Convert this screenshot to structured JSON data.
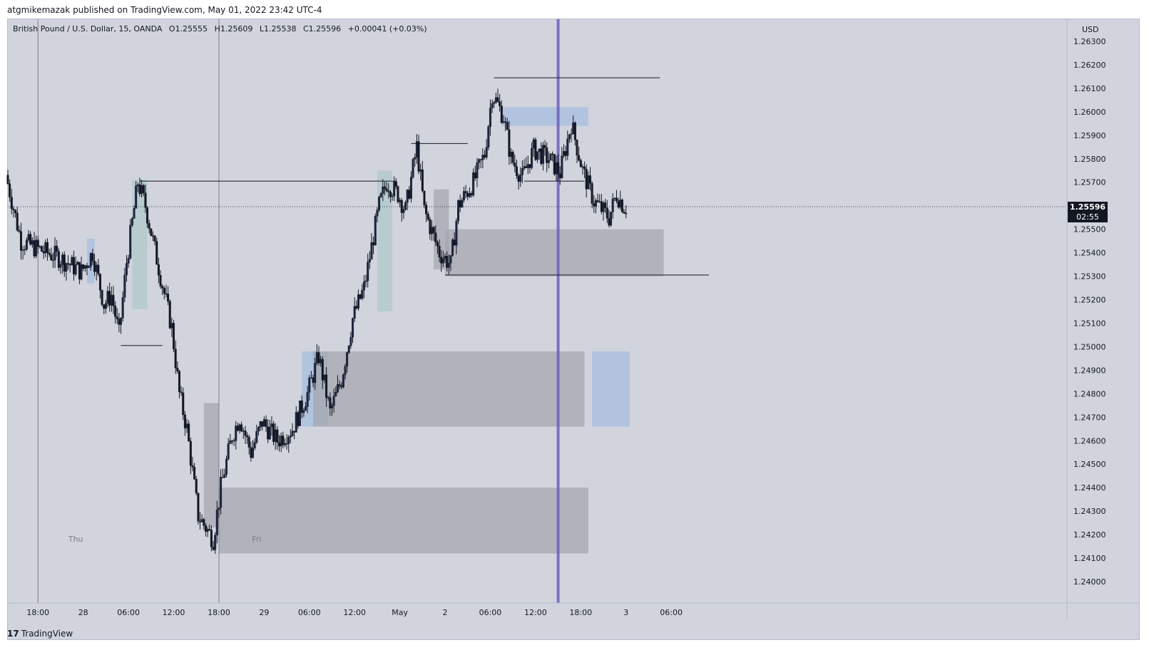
{
  "publisher_line": "atgmikemazak published on TradingView.com, May 01, 2022 23:42 UTC-4",
  "legend": {
    "symbol": "British Pound / U.S. Dollar, 15, OANDA",
    "open": "O1.25555",
    "high": "H1.25609",
    "low": "L1.25538",
    "close": "C1.25596",
    "change": "+0.00041 (+0.03%)"
  },
  "last_price": {
    "price": "1.25596",
    "countdown": "02:55"
  },
  "brand": {
    "logo": "17",
    "name": "TradingView"
  },
  "colors": {
    "background": "#d1d4dc",
    "candle": "#131722",
    "zone_grey": "#a5a7b0",
    "zone_blue": "#a9bede",
    "zone_teal": "#b2c9cc",
    "session_line": "#6a5fbf"
  },
  "chart_data": {
    "type": "candlestick",
    "currency": "USD",
    "ylim": [
      1.2392,
      1.2638
    ],
    "y_ticks": [
      "1.26300",
      "1.26200",
      "1.26100",
      "1.26000",
      "1.25900",
      "1.25800",
      "1.25700",
      "1.25600",
      "1.25500",
      "1.25400",
      "1.25300",
      "1.25200",
      "1.25100",
      "1.25000",
      "1.24900",
      "1.24800",
      "1.24700",
      "1.24600",
      "1.24500",
      "1.24400",
      "1.24300",
      "1.24200",
      "1.24100",
      "1.24000"
    ],
    "x_ticks": [
      "18:00",
      "28",
      "06:00",
      "12:00",
      "18:00",
      "29",
      "06:00",
      "12:00",
      "May",
      "2",
      "06:00",
      "12:00",
      "18:00",
      "3",
      "06:00"
    ],
    "day_labels": [
      "Thu",
      "Fri"
    ],
    "path": [
      {
        "t": "2022-04-27T14:00",
        "p": 1.2573
      },
      {
        "t": "2022-04-27T16:00",
        "p": 1.2545
      },
      {
        "t": "2022-04-27T18:00",
        "p": 1.2542
      },
      {
        "t": "2022-04-27T21:00",
        "p": 1.2538
      },
      {
        "t": "2022-04-28T00:00",
        "p": 1.2532
      },
      {
        "t": "2022-04-28T01:30",
        "p": 1.254
      },
      {
        "t": "2022-04-28T03:00",
        "p": 1.2518
      },
      {
        "t": "2022-04-28T04:00",
        "p": 1.2522
      },
      {
        "t": "2022-04-28T05:00",
        "p": 1.2505
      },
      {
        "t": "2022-04-28T06:00",
        "p": 1.2536
      },
      {
        "t": "2022-04-28T07:30",
        "p": 1.257
      },
      {
        "t": "2022-04-28T08:30",
        "p": 1.256
      },
      {
        "t": "2022-04-28T10:30",
        "p": 1.253
      },
      {
        "t": "2022-04-28T12:00",
        "p": 1.2508
      },
      {
        "t": "2022-04-28T13:00",
        "p": 1.248
      },
      {
        "t": "2022-04-28T14:00",
        "p": 1.2465
      },
      {
        "t": "2022-04-28T15:30",
        "p": 1.2428
      },
      {
        "t": "2022-04-28T17:30",
        "p": 1.2418
      },
      {
        "t": "2022-04-28T18:30",
        "p": 1.244
      },
      {
        "t": "2022-04-28T20:00",
        "p": 1.2462
      },
      {
        "t": "2022-04-28T21:00",
        "p": 1.247
      },
      {
        "t": "2022-04-28T22:30",
        "p": 1.2455
      },
      {
        "t": "2022-04-29T00:00",
        "p": 1.2468
      },
      {
        "t": "2022-04-29T02:00",
        "p": 1.246
      },
      {
        "t": "2022-04-29T04:00",
        "p": 1.2465
      },
      {
        "t": "2022-04-29T06:00",
        "p": 1.248
      },
      {
        "t": "2022-04-29T07:30",
        "p": 1.2496
      },
      {
        "t": "2022-04-29T09:00",
        "p": 1.2472
      },
      {
        "t": "2022-04-29T10:30",
        "p": 1.2486
      },
      {
        "t": "2022-04-29T12:00",
        "p": 1.2512
      },
      {
        "t": "2022-04-29T13:30",
        "p": 1.2525
      },
      {
        "t": "2022-04-29T15:30",
        "p": 1.256
      },
      {
        "t": "2022-04-29T16:30",
        "p": 1.257
      },
      {
        "t": "2022-04-29T18:00",
        "p": 1.2565
      },
      {
        "t": "2022-04-29T19:00",
        "p": 1.2558
      },
      {
        "t": "2022-04-29T20:30",
        "p": 1.2585
      },
      {
        "t": "2022-04-29T21:30",
        "p": 1.2558
      },
      {
        "t": "2022-04-29T23:30",
        "p": 1.254
      },
      {
        "t": "2022-04-30T01:00",
        "p": 1.2535
      },
      {
        "t": "2022-04-30T02:00",
        "p": 1.256
      },
      {
        "t": "2022-04-30T04:00",
        "p": 1.257
      },
      {
        "t": "2022-04-30T05:30",
        "p": 1.2582
      },
      {
        "t": "2022-04-30T06:30",
        "p": 1.2608
      },
      {
        "t": "2022-04-30T08:00",
        "p": 1.2598
      },
      {
        "t": "2022-04-30T09:00",
        "p": 1.258
      },
      {
        "t": "2022-04-30T10:30",
        "p": 1.2572
      },
      {
        "t": "2022-04-30T12:00",
        "p": 1.2584
      },
      {
        "t": "2022-04-30T14:00",
        "p": 1.258
      },
      {
        "t": "2022-04-30T15:30",
        "p": 1.2574
      },
      {
        "t": "2022-04-30T17:00",
        "p": 1.2595
      },
      {
        "t": "2022-04-30T18:30",
        "p": 1.2575
      },
      {
        "t": "2022-04-30T20:00",
        "p": 1.2562
      },
      {
        "t": "2022-04-30T22:00",
        "p": 1.2555
      },
      {
        "t": "2022-04-30T23:00",
        "p": 1.2565
      },
      {
        "t": "2022-05-01T00:00",
        "p": 1.25596
      }
    ],
    "time_range": [
      "2022-04-27T14:00",
      "2022-05-03T10:30"
    ],
    "horizontal_levels": [
      {
        "price": 1.25005,
        "from": "2022-04-28T05:00",
        "to": "2022-04-28T10:30"
      },
      {
        "price": 1.25705,
        "from": "2022-04-28T07:30",
        "to": "2022-04-29T17:30"
      },
      {
        "price": 1.25865,
        "from": "2022-04-29T19:30",
        "to": "2022-04-30T03:00"
      },
      {
        "price": 1.26145,
        "from": "2022-04-30T06:30",
        "to": "2022-05-01T04:30"
      },
      {
        "price": 1.25705,
        "from": "2022-04-30T10:30",
        "to": "2022-04-30T18:30"
      },
      {
        "price": 1.25305,
        "from": "2022-04-30T00:00",
        "to": "2022-05-01T11:00"
      }
    ],
    "zones": [
      {
        "kind": "teal",
        "from": "2022-04-28T06:30",
        "to": "2022-04-28T08:30",
        "low": 1.2516,
        "high": 1.2571
      },
      {
        "kind": "blue",
        "from": "2022-04-28T00:30",
        "to": "2022-04-28T01:30",
        "low": 1.2527,
        "high": 1.2546
      },
      {
        "kind": "grey",
        "from": "2022-04-28T16:00",
        "to": "2022-04-28T18:00",
        "low": 1.2423,
        "high": 1.2476
      },
      {
        "kind": "grey",
        "from": "2022-04-28T18:00",
        "to": "2022-04-30T19:00",
        "low": 1.2412,
        "high": 1.244
      },
      {
        "kind": "blue",
        "from": "2022-04-29T05:00",
        "to": "2022-04-29T08:30",
        "low": 1.2466,
        "high": 1.2498
      },
      {
        "kind": "grey",
        "from": "2022-04-29T06:30",
        "to": "2022-04-30T18:30",
        "low": 1.2466,
        "high": 1.2498
      },
      {
        "kind": "teal",
        "from": "2022-04-29T15:00",
        "to": "2022-04-29T17:00",
        "low": 1.2515,
        "high": 1.2575
      },
      {
        "kind": "grey",
        "from": "2022-04-29T22:30",
        "to": "2022-04-30T00:30",
        "low": 1.2533,
        "high": 1.2567
      },
      {
        "kind": "grey",
        "from": "2022-04-30T00:00",
        "to": "2022-05-01T05:00",
        "low": 1.253,
        "high": 1.255
      },
      {
        "kind": "blue",
        "from": "2022-04-30T07:30",
        "to": "2022-04-30T19:00",
        "low": 1.2594,
        "high": 1.2602
      },
      {
        "kind": "blue",
        "from": "2022-04-30T19:30",
        "to": "2022-05-01T00:30",
        "low": 1.2466,
        "high": 1.2498
      }
    ],
    "session_line": "2022-04-30T15:00"
  }
}
